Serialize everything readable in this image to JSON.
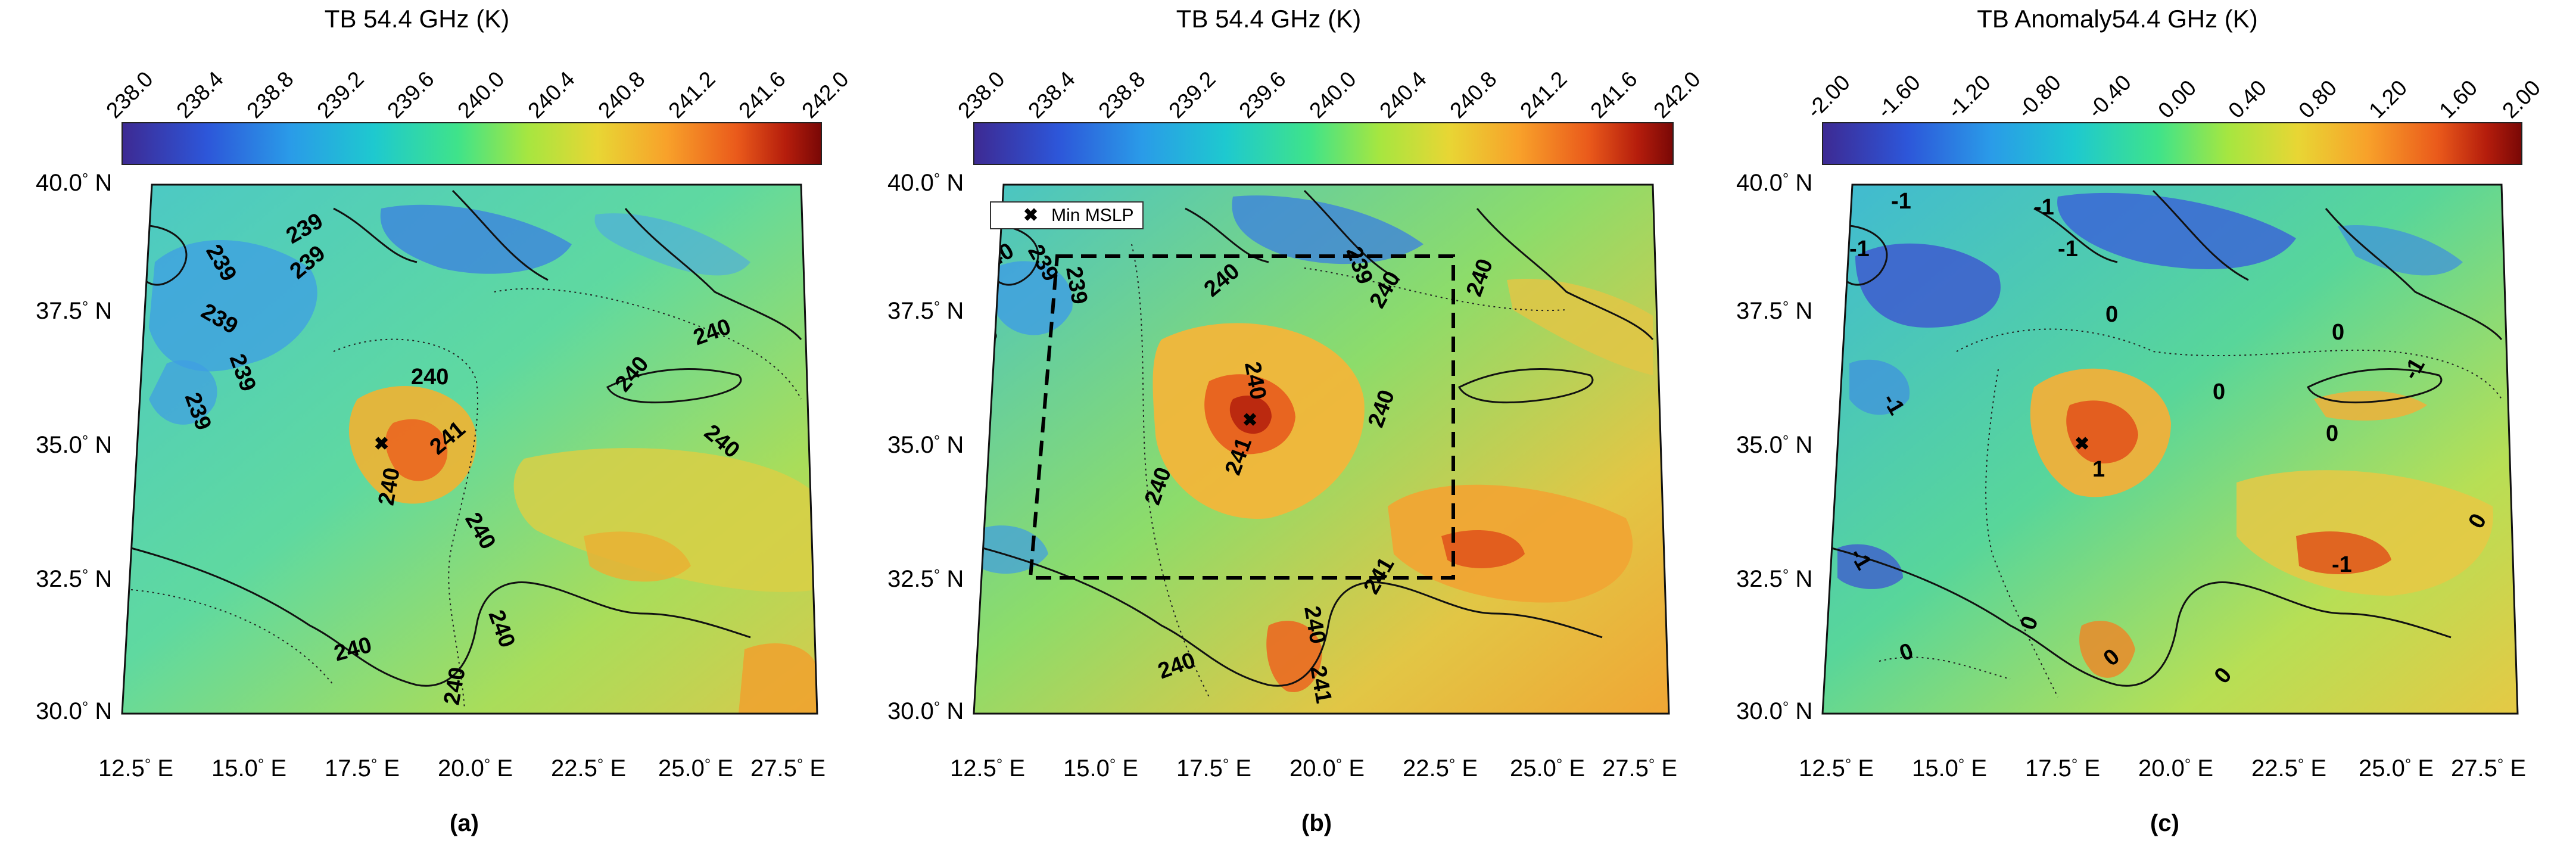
{
  "panels": [
    {
      "colorbar_title": "TB 54.4 GHz (K)",
      "ticks": [
        "238.0",
        "238.4",
        "238.8",
        "239.2",
        "239.6",
        "240.0",
        "240.4",
        "240.8",
        "241.2",
        "241.6",
        "242.0"
      ],
      "label": "(a)",
      "contour_labels": [
        "239",
        "239",
        "239",
        "239",
        "239",
        "239",
        "240",
        "240",
        "240",
        "240",
        "240",
        "241",
        "240",
        "240",
        "240",
        "240"
      ]
    },
    {
      "colorbar_title": "TB 54.4 GHz (K)",
      "ticks": [
        "238.0",
        "238.4",
        "238.8",
        "239.2",
        "239.6",
        "240.0",
        "240.4",
        "240.8",
        "241.2",
        "241.6",
        "242.0"
      ],
      "label": "(b)",
      "legend": "Min MSLP",
      "contour_labels": [
        "239",
        "240",
        "239",
        "239",
        "240",
        "239",
        "240",
        "240",
        "240",
        "240",
        "241",
        "240",
        "240",
        "241",
        "241",
        "240"
      ]
    },
    {
      "colorbar_title": "TB Anomaly54.4 GHz (K)",
      "ticks": [
        "-2.00",
        "-1.60",
        "-1.20",
        "-0.80",
        "-0.40",
        "0.00",
        "0.40",
        "0.80",
        "1.20",
        "1.60",
        "2.00"
      ],
      "label": "(c)",
      "contour_labels": [
        "-1",
        "-1",
        "-1",
        "-1",
        "-1",
        "-1",
        "0",
        "0",
        "0",
        "1",
        "0",
        "-1",
        "-1",
        "0",
        "0",
        "0",
        "0",
        "0"
      ]
    }
  ],
  "lat_labels": [
    "40.0",
    "37.5",
    "35.0",
    "32.5",
    "30.0"
  ],
  "lat_suffix": "N",
  "lon_labels": [
    "12.5",
    "15.0",
    "17.5",
    "20.0",
    "22.5",
    "25.0",
    "27.5"
  ],
  "lon_suffix": "E",
  "degree": "°",
  "colors": {
    "low": "#3d2a93",
    "mid": "#3fe38a",
    "high": "#7a0806"
  }
}
